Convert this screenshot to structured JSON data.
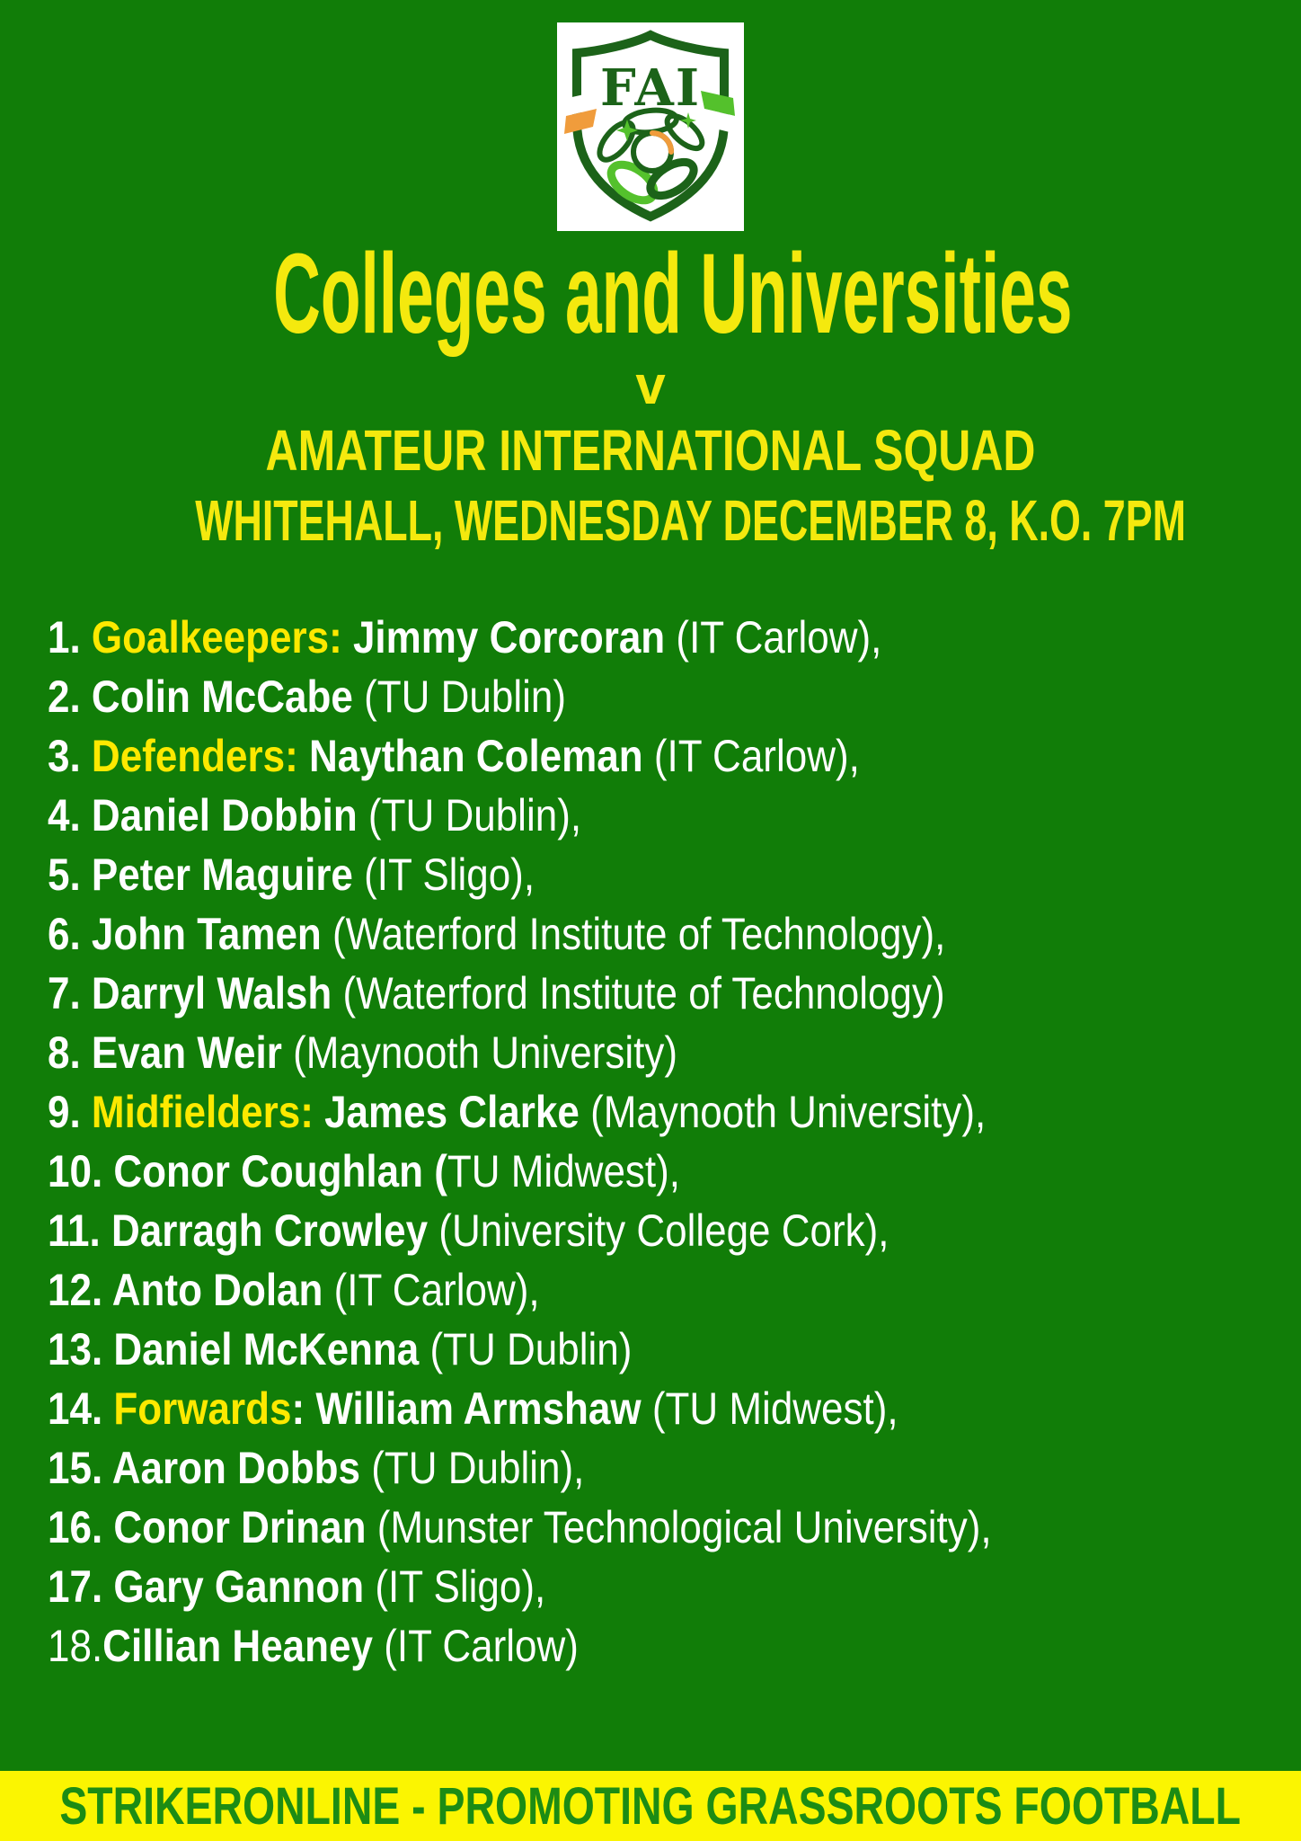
{
  "logo": {
    "text": "FAI"
  },
  "title": "Colleges and Universities",
  "versus": "v",
  "subtitle_squad": "AMATEUR INTERNATIONAL SQUAD",
  "subtitle_venue": "WHITEHALL, WEDNESDAY DECEMBER 8, K.O. 7PM",
  "squad": {
    "rows": [
      [
        {
          "t": "1. ",
          "s": "b"
        },
        {
          "t": "Goalkeepers: ",
          "s": "y"
        },
        {
          "t": "Jimmy Corcoran ",
          "s": "b"
        },
        {
          "t": "(IT Carlow),",
          "s": "r"
        }
      ],
      [
        {
          "t": "2. ",
          "s": "b"
        },
        {
          "t": "Colin McCabe ",
          "s": "b"
        },
        {
          "t": "(TU Dublin)",
          "s": "r"
        }
      ],
      [
        {
          "t": "3. ",
          "s": "b"
        },
        {
          "t": "Defenders: ",
          "s": "y"
        },
        {
          "t": "Naythan Coleman ",
          "s": "b"
        },
        {
          "t": "(IT Carlow),",
          "s": "r"
        }
      ],
      [
        {
          "t": "4. ",
          "s": "b"
        },
        {
          "t": "Daniel Dobbin ",
          "s": "b"
        },
        {
          "t": "(TU Dublin),",
          "s": "r"
        }
      ],
      [
        {
          "t": "5. ",
          "s": "b"
        },
        {
          "t": "Peter Maguire ",
          "s": "b"
        },
        {
          "t": "(IT Sligo),",
          "s": "r"
        }
      ],
      [
        {
          "t": "6. ",
          "s": "b"
        },
        {
          "t": "John Tamen ",
          "s": "b"
        },
        {
          "t": "(Waterford Institute of Technology),",
          "s": "r"
        }
      ],
      [
        {
          "t": "7. ",
          "s": "b"
        },
        {
          "t": "Darryl Walsh ",
          "s": "b"
        },
        {
          "t": "(Waterford Institute of Technology)",
          "s": "r"
        }
      ],
      [
        {
          "t": "8. ",
          "s": "b"
        },
        {
          "t": "Evan Weir ",
          "s": "b"
        },
        {
          "t": "(Maynooth University)",
          "s": "r"
        }
      ],
      [
        {
          "t": "9. ",
          "s": "b"
        },
        {
          "t": "Midfielders: ",
          "s": "y"
        },
        {
          "t": "James Clarke ",
          "s": "b"
        },
        {
          "t": "(Maynooth University),",
          "s": "r"
        }
      ],
      [
        {
          "t": "10. ",
          "s": "b"
        },
        {
          "t": "Conor Coughlan (",
          "s": "b"
        },
        {
          "t": "TU Midwest),",
          "s": "r"
        }
      ],
      [
        {
          "t": "11. ",
          "s": "b"
        },
        {
          "t": "Darragh Crowley ",
          "s": "b"
        },
        {
          "t": "(University College Cork),",
          "s": "r"
        }
      ],
      [
        {
          "t": "12. ",
          "s": "b"
        },
        {
          "t": "Anto Dolan ",
          "s": "b"
        },
        {
          "t": "(IT Carlow),",
          "s": "r"
        }
      ],
      [
        {
          "t": "13. ",
          "s": "b"
        },
        {
          "t": "Daniel McKenna ",
          "s": "b"
        },
        {
          "t": "(TU Dublin)",
          "s": "r"
        }
      ],
      [
        {
          "t": "14. ",
          "s": "b"
        },
        {
          "t": "Forwards",
          "s": "y"
        },
        {
          "t": ": ",
          "s": "b"
        },
        {
          "t": "William Armshaw ",
          "s": "b"
        },
        {
          "t": "(TU Midwest),",
          "s": "r"
        }
      ],
      [
        {
          "t": "15. ",
          "s": "b"
        },
        {
          "t": "Aaron Dobbs ",
          "s": "b"
        },
        {
          "t": "(TU Dublin),",
          "s": "r"
        }
      ],
      [
        {
          "t": "16. ",
          "s": "b"
        },
        {
          "t": "Conor Drinan ",
          "s": "b"
        },
        {
          "t": "(Munster Technological University),",
          "s": "r"
        }
      ],
      [
        {
          "t": "17. ",
          "s": "b"
        },
        {
          "t": "Gary Gannon ",
          "s": "b"
        },
        {
          "t": "(IT Sligo),",
          "s": "r"
        }
      ],
      [
        {
          "t": "18.",
          "s": "r"
        },
        {
          "t": "Cillian Heaney ",
          "s": "b"
        },
        {
          "t": "(IT Carlow)",
          "s": "r"
        }
      ]
    ]
  },
  "footer": "STRIKERONLINE - PROMOTING GRASSROOTS FOOTBALL",
  "colors": {
    "green": "#117d08",
    "yellow_title": "#f4e90e",
    "yellow_accent": "#fde900",
    "white": "#ffffff",
    "banner_bg": "#fbf501",
    "banner_text": "#1c8c14",
    "crest_dark": "#1c6319",
    "crest_light": "#54c12c",
    "crest_orange": "#f09c3c"
  }
}
